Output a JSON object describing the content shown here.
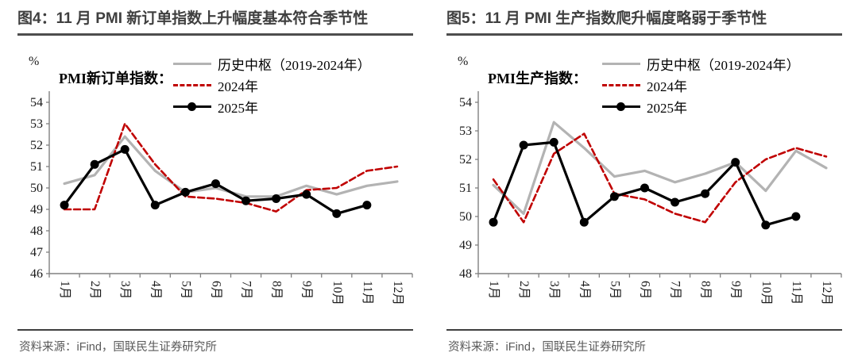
{
  "colors": {
    "hist": "#b3b3b3",
    "year2024": "#c00000",
    "year2025": "#000000",
    "axis": "#808080",
    "tick_text": "#1a1a1a",
    "title_text": "#3f3f3f",
    "source_text": "#595959"
  },
  "figures": [
    {
      "title": "图4：11 月 PMI 新订单指数上升幅度基本符合季节性",
      "unit": "%",
      "series_label": "PMI新订单指数：",
      "legend": [
        "历史中枢（2019-2024年）",
        "2024年",
        "2025年"
      ],
      "source": "资料来源：iFind，国联民生证券研究所"
    },
    {
      "title": "图5：11 月 PMI 生产指数爬升幅度略弱于季节性",
      "unit": "%",
      "series_label": "PMI生产指数：",
      "legend": [
        "历史中枢（2019-2024年）",
        "2024年",
        "2025年"
      ],
      "source": "资料来源：iFind，国联民生证券研究所"
    }
  ],
  "chart_data": [
    {
      "type": "line",
      "title": "PMI新订单指数",
      "categories": [
        "1月",
        "2月",
        "3月",
        "4月",
        "5月",
        "6月",
        "7月",
        "8月",
        "9月",
        "10月",
        "11月",
        "12月"
      ],
      "ylabel": "%",
      "ylim": [
        46,
        54
      ],
      "ytick_step": 1,
      "grid": false,
      "legend_position": "top-right",
      "series": [
        {
          "name": "历史中枢（2019-2024年）",
          "color": "#b3b3b3",
          "style": "solid",
          "values": [
            50.2,
            50.6,
            52.4,
            50.8,
            49.8,
            50.0,
            49.6,
            49.6,
            50.1,
            49.7,
            50.1,
            50.3
          ]
        },
        {
          "name": "2024年",
          "color": "#c00000",
          "style": "dashed",
          "values": [
            49.0,
            49.0,
            53.0,
            51.1,
            49.6,
            49.5,
            49.3,
            48.9,
            49.9,
            50.0,
            50.8,
            51.0
          ]
        },
        {
          "name": "2025年",
          "color": "#000000",
          "style": "solid-marker",
          "values": [
            49.2,
            51.1,
            51.8,
            49.2,
            49.8,
            50.2,
            49.4,
            49.5,
            49.7,
            48.8,
            49.2
          ]
        }
      ]
    },
    {
      "type": "line",
      "title": "PMI生产指数",
      "categories": [
        "1月",
        "2月",
        "3月",
        "4月",
        "5月",
        "6月",
        "7月",
        "8月",
        "9月",
        "10月",
        "11月",
        "12月"
      ],
      "ylabel": "%",
      "ylim": [
        48,
        54
      ],
      "ytick_step": 1,
      "grid": false,
      "legend_position": "top-right",
      "series": [
        {
          "name": "历史中枢（2019-2024年）",
          "color": "#b3b3b3",
          "style": "solid",
          "values": [
            51.1,
            50.1,
            53.3,
            52.4,
            51.4,
            51.6,
            51.2,
            51.5,
            51.9,
            50.9,
            52.3,
            51.7
          ]
        },
        {
          "name": "2024年",
          "color": "#c00000",
          "style": "dashed",
          "values": [
            51.3,
            49.8,
            52.2,
            52.9,
            50.8,
            50.6,
            50.1,
            49.8,
            51.2,
            52.0,
            52.4,
            52.1
          ]
        },
        {
          "name": "2025年",
          "color": "#000000",
          "style": "solid-marker",
          "values": [
            49.8,
            52.5,
            52.6,
            49.8,
            50.7,
            51.0,
            50.5,
            50.8,
            51.9,
            49.7,
            50.0
          ]
        }
      ]
    }
  ]
}
